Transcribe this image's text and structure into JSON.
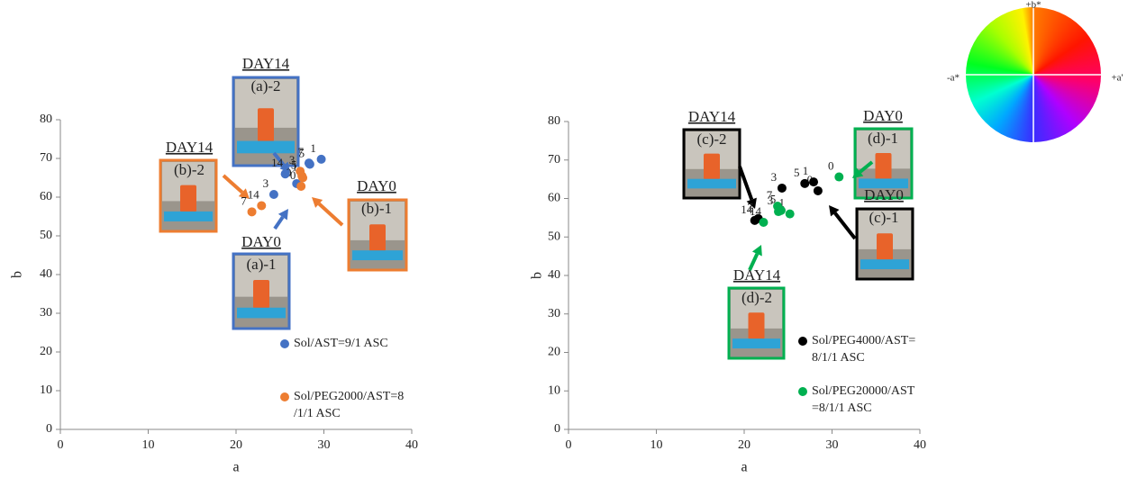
{
  "chart_data": [
    {
      "type": "scatter",
      "xlabel": "a",
      "ylabel": "b",
      "xlim": [
        0,
        40
      ],
      "ylim": [
        0,
        80
      ],
      "xticks": [
        0,
        10,
        20,
        30,
        40
      ],
      "yticks": [
        0,
        10,
        20,
        30,
        40,
        50,
        60,
        70,
        80
      ],
      "series": [
        {
          "name": "Sol/AST=9/1 ASC",
          "color": "#4472c4",
          "x": [
            26.9,
            29.7,
            24.3,
            28.4,
            28.3,
            25.6
          ],
          "y": [
            63.5,
            69.8,
            60.7,
            68.5,
            68.8,
            66.0
          ],
          "labels": [
            "0",
            "1",
            "3",
            "5",
            "7",
            "14"
          ]
        },
        {
          "name": "Sol/PEG2000/AST=8/1/1 ASC",
          "color": "#ed7d31",
          "x": [
            27.4,
            27.6,
            27.3,
            27.5,
            21.8,
            22.9
          ],
          "y": [
            62.8,
            65.0,
            66.7,
            65.5,
            56.2,
            57.8
          ],
          "labels": [
            "0",
            "1",
            "3",
            "5",
            "7",
            "14"
          ]
        }
      ],
      "annotations": [
        {
          "day": "DAY14",
          "panel": "(a)-2",
          "color": "#4472c4"
        },
        {
          "day": "DAY14",
          "panel": "(b)-2",
          "color": "#ed7d31"
        },
        {
          "day": "DAY0",
          "panel": "(b)-1",
          "color": "#ed7d31"
        },
        {
          "day": "DAY0",
          "panel": "(a)-1",
          "color": "#4472c4"
        }
      ]
    },
    {
      "type": "scatter",
      "xlabel": "a",
      "ylabel": "b",
      "xlim": [
        0,
        40
      ],
      "ylim": [
        0,
        80
      ],
      "xticks": [
        0,
        10,
        20,
        30,
        40
      ],
      "yticks": [
        0,
        10,
        20,
        30,
        40,
        50,
        60,
        70,
        80
      ],
      "series": [
        {
          "name": "Sol/PEG4000/AST=8/1/1 ASC",
          "color": "#000000",
          "x": [
            28.4,
            27.9,
            24.3,
            26.9,
            21.6,
            21.2
          ],
          "y": [
            62.0,
            64.3,
            62.7,
            63.9,
            54.8,
            54.3
          ],
          "labels": [
            "0",
            "1",
            "3",
            "5",
            "7",
            "14"
          ]
        },
        {
          "name": "Sol/PEG20000/AST=8/1/1 ASC",
          "color": "#00b050",
          "x": [
            30.8,
            25.2,
            23.9,
            24.2,
            23.8,
            22.2
          ],
          "y": [
            65.6,
            56.0,
            56.6,
            56.9,
            58.0,
            53.8
          ],
          "labels": [
            "0",
            "1",
            "3",
            "5",
            "7",
            "14"
          ]
        }
      ],
      "annotations": [
        {
          "day": "DAY14",
          "panel": "(c)-2",
          "color": "#000000"
        },
        {
          "day": "DAY0",
          "panel": "(d)-1",
          "color": "#00b050"
        },
        {
          "day": "DAY0",
          "panel": "(c)-1",
          "color": "#000000"
        },
        {
          "day": "DAY14",
          "panel": "(d)-2",
          "color": "#00b050"
        }
      ]
    }
  ],
  "color_wheel": {
    "top": "+b*",
    "left": "-a*",
    "right": "+a'"
  }
}
